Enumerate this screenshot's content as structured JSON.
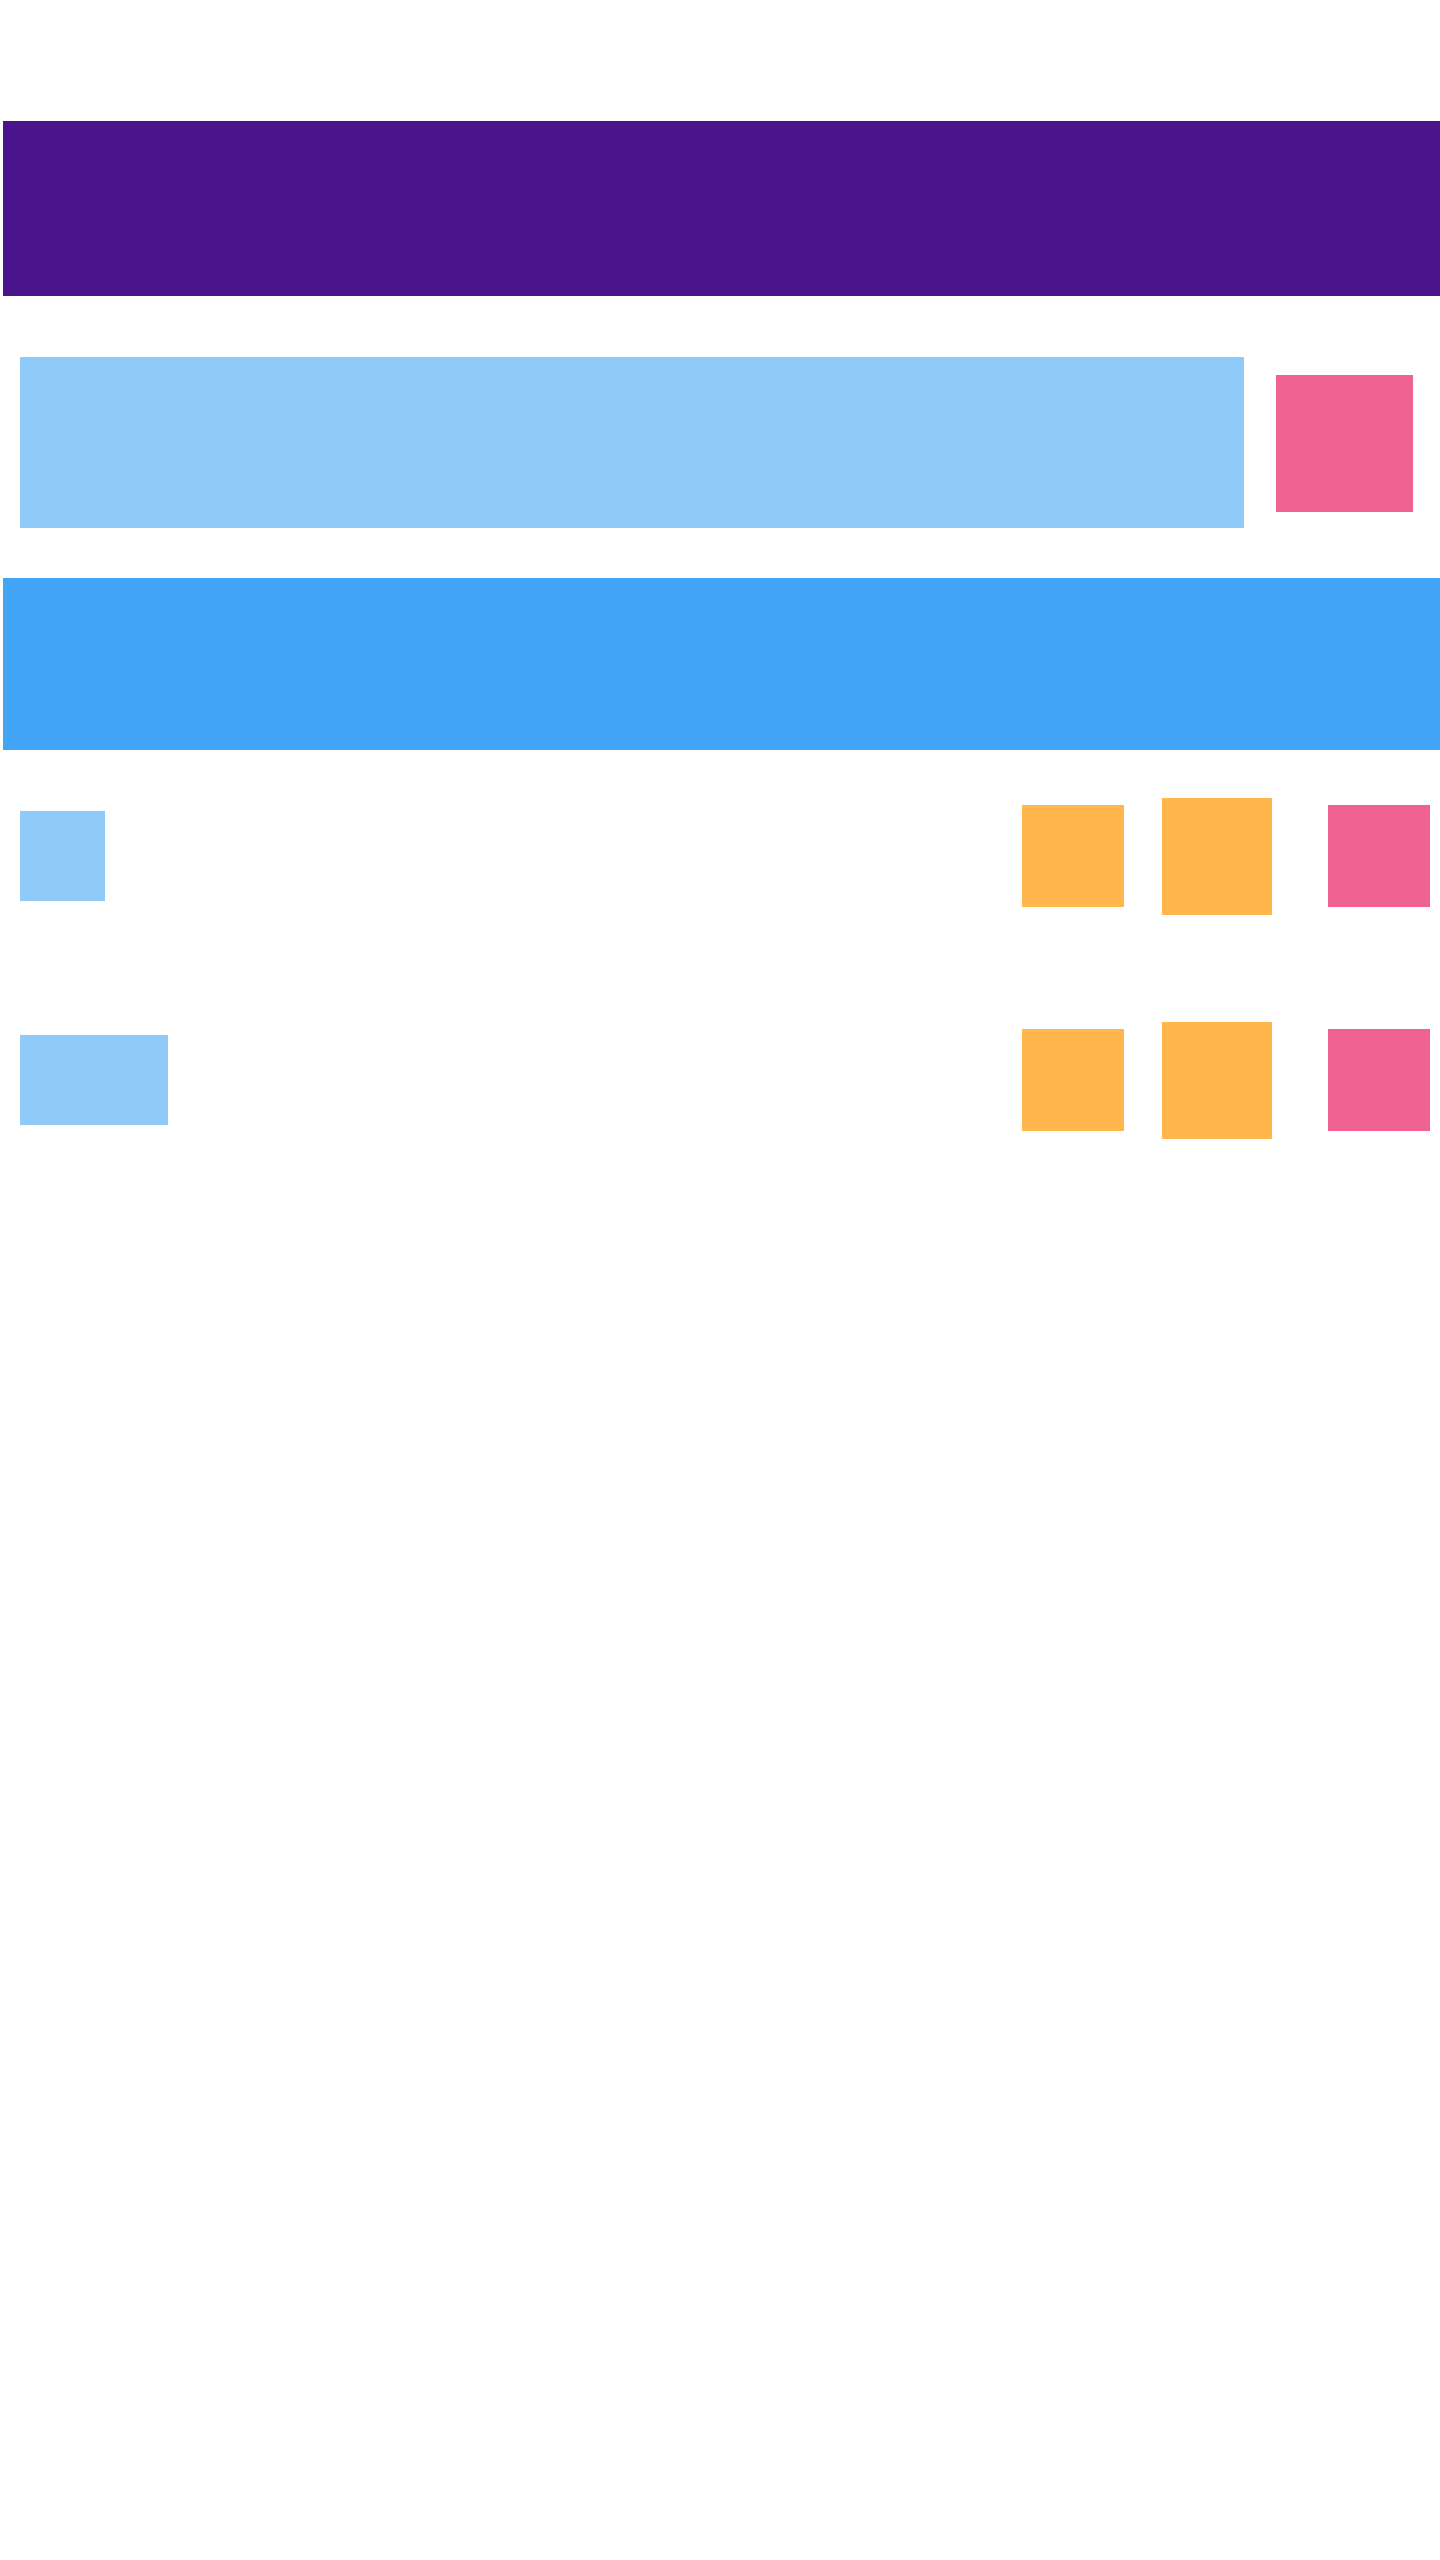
{
  "colors": {
    "app_bar": "#4A148C",
    "text_field": "#90CAF9",
    "banner": "#42A5F5",
    "action_warm": "#FFB74D",
    "action_pink": "#F06292",
    "label_blue": "#90CAF9"
  },
  "list": {
    "rows": [
      {},
      {}
    ]
  }
}
